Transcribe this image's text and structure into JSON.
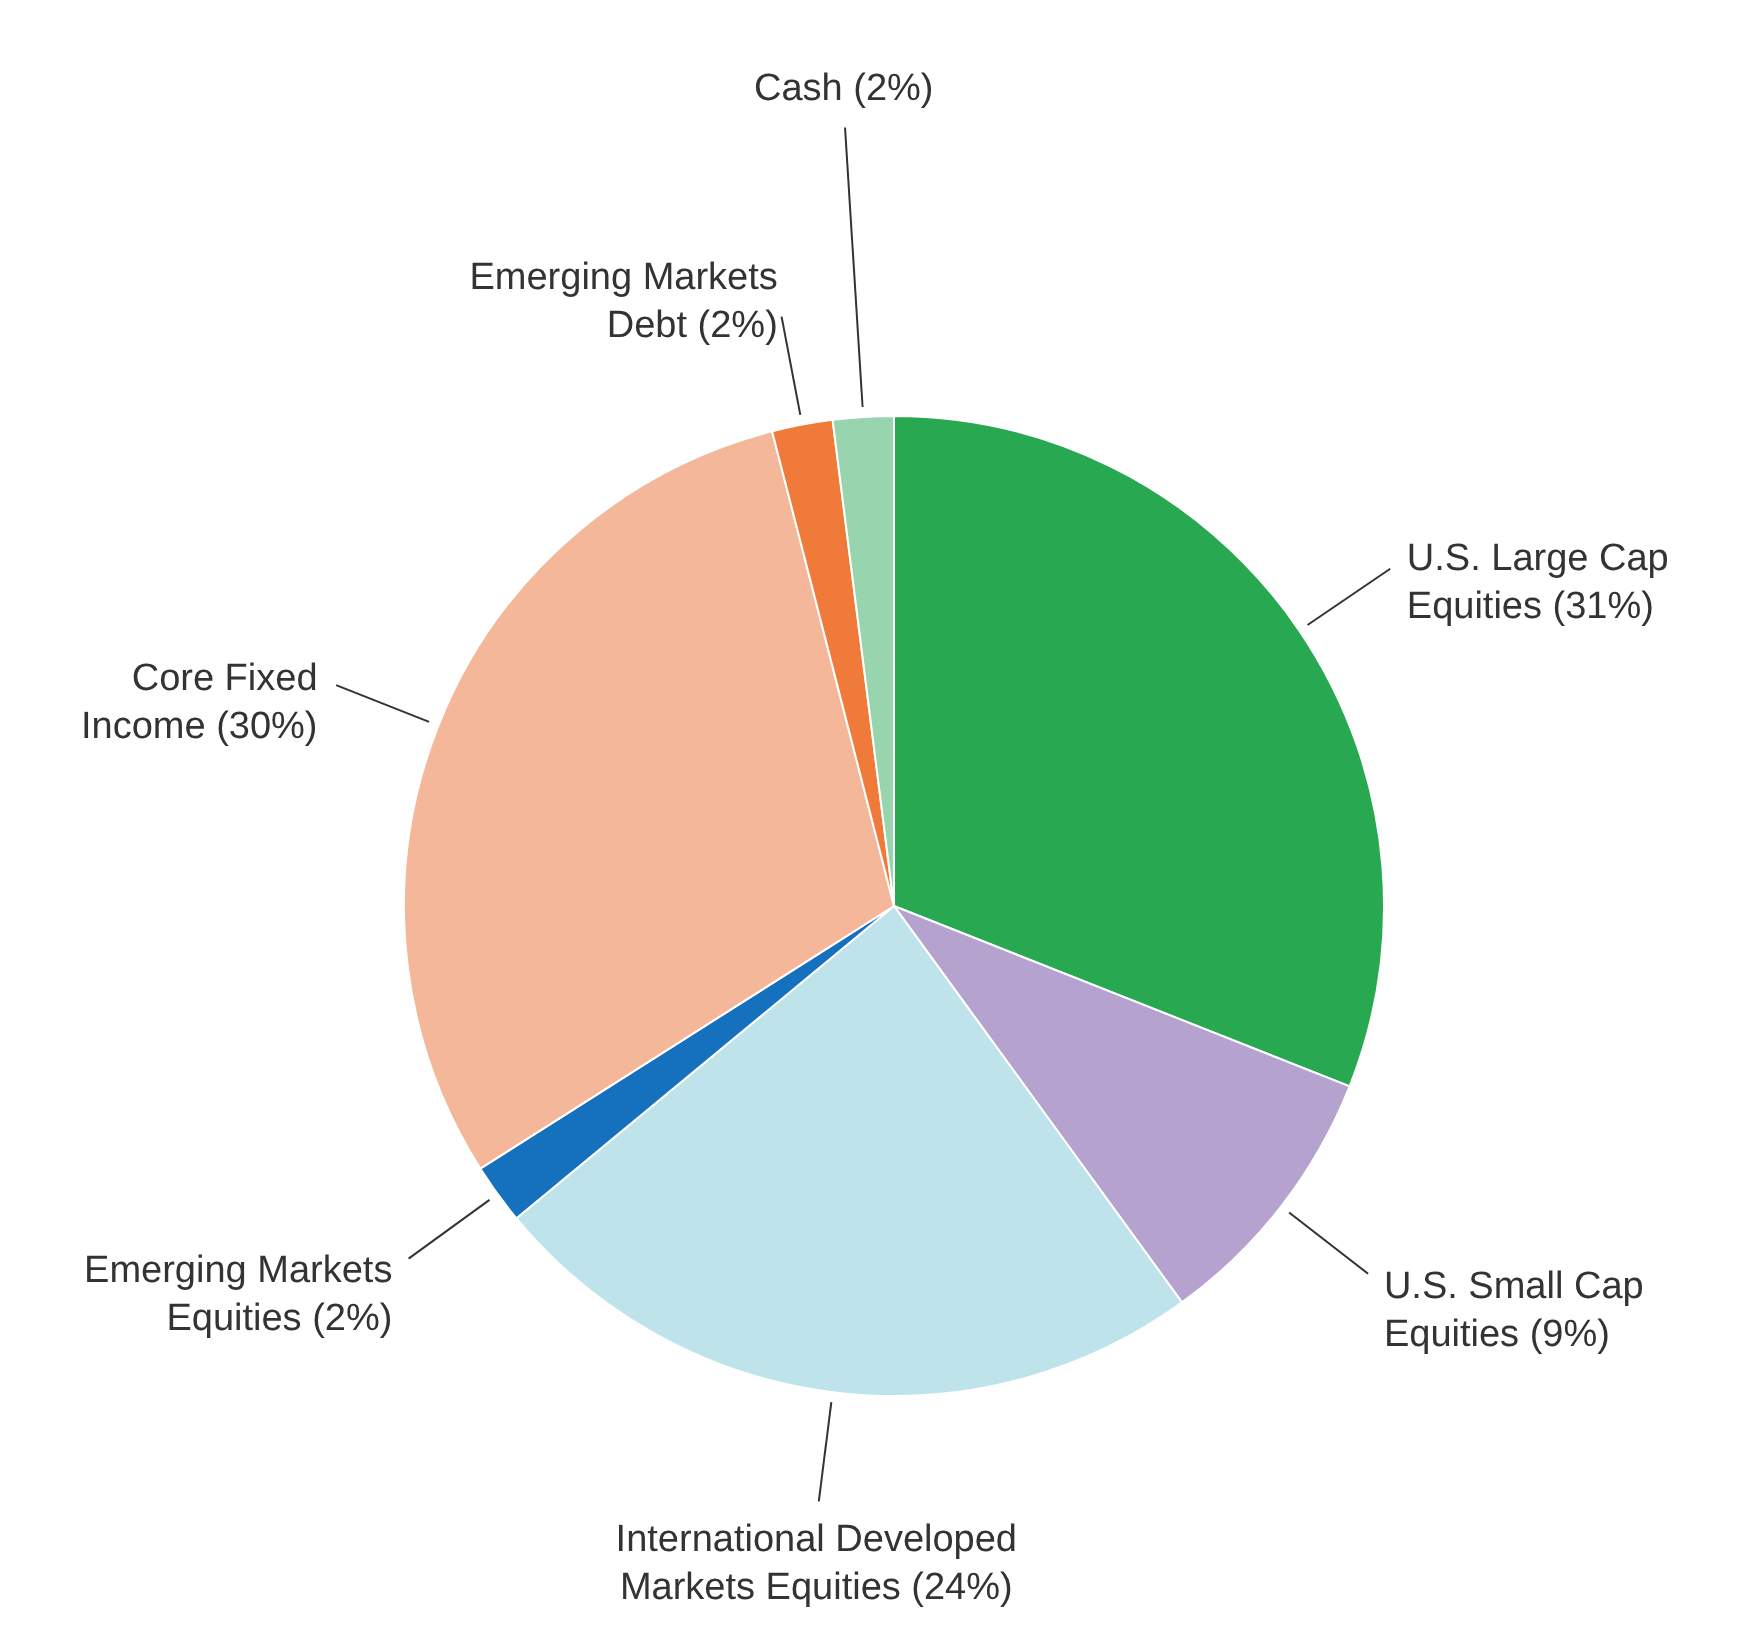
{
  "chart_data": {
    "type": "pie",
    "categories": [
      "U.S. Large Cap Equities",
      "U.S. Small Cap Equities",
      "International Developed Markets Equities",
      "Emerging Markets Equities",
      "Core Fixed Income",
      "Emerging Markets Debt",
      "Cash"
    ],
    "values": [
      31,
      9,
      24,
      2,
      30,
      2,
      2
    ],
    "value_labels": [
      "(31%)",
      "(9%)",
      "(24%)",
      "(2%)",
      "(30%)",
      "(2%)",
      "(2%)"
    ],
    "colors": [
      "#27a851",
      "#b5a2cf",
      "#bfe3ea",
      "#1570be",
      "#f5b799",
      "#f07a3a",
      "#98d4ae"
    ]
  }
}
